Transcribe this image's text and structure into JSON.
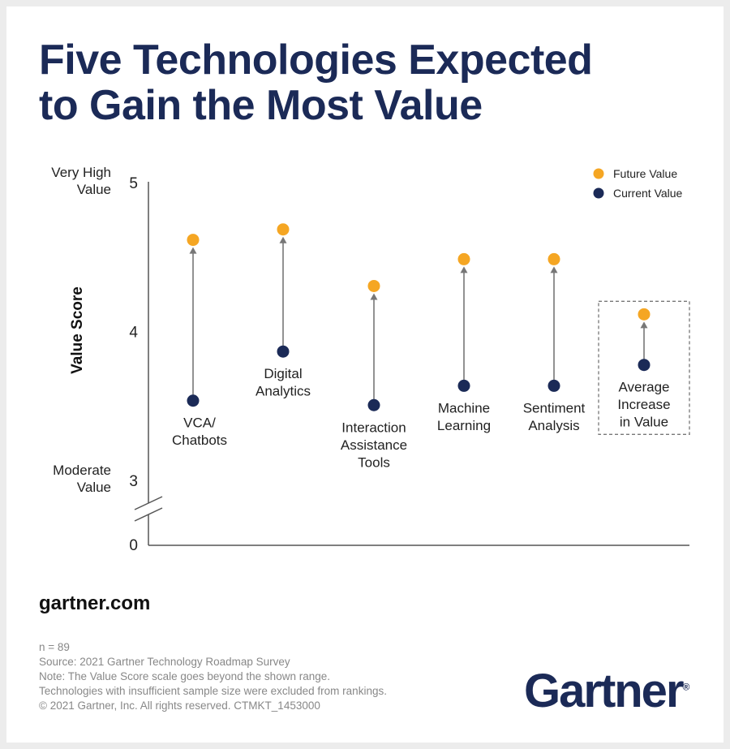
{
  "title_line1": "Five Technologies Expected",
  "title_line2": "to Gain the Most Value",
  "chart_data": {
    "type": "dot-arrow",
    "ylabel": "Value Score",
    "ylim": [
      3,
      5
    ],
    "axis_break": true,
    "y_ticks": [
      {
        "value": 5,
        "label": "5",
        "annotation": [
          "Very High",
          "Value"
        ]
      },
      {
        "value": 4,
        "label": "4",
        "annotation": []
      },
      {
        "value": 3,
        "label": "3",
        "annotation": [
          "Moderate",
          "Value"
        ]
      },
      {
        "value": 0,
        "label": "0",
        "annotation": []
      }
    ],
    "legend": {
      "position": "top-right",
      "entries": [
        {
          "name": "Future Value",
          "color": "#f5a623"
        },
        {
          "name": "Current Value",
          "color": "#1b2a57"
        }
      ]
    },
    "categories": [
      {
        "label": [
          "VCA/",
          "Chatbots"
        ],
        "current": 3.53,
        "future": 4.61
      },
      {
        "label": [
          "Digital",
          "Analytics"
        ],
        "current": 3.86,
        "future": 4.68
      },
      {
        "label": [
          "Interaction",
          "Assistance",
          "Tools"
        ],
        "current": 3.5,
        "future": 4.3
      },
      {
        "label": [
          "Machine",
          "Learning"
        ],
        "current": 3.63,
        "future": 4.48
      },
      {
        "label": [
          "Sentiment",
          "Analysis"
        ],
        "current": 3.63,
        "future": 4.48
      },
      {
        "label": [
          "Average",
          "Increase",
          "in Value"
        ],
        "current": 3.77,
        "future": 4.11,
        "highlighted": true
      }
    ],
    "grid": false
  },
  "site": "gartner.com",
  "notes": [
    "n = 89",
    "Source: 2021 Gartner Technology Roadmap Survey",
    "Note: The Value Score scale goes beyond the shown range.",
    "Technologies with insufficient sample size were excluded from rankings.",
    "© 2021 Gartner, Inc. All rights reserved. CTMKT_1453000"
  ],
  "logo_text": "Gartner"
}
